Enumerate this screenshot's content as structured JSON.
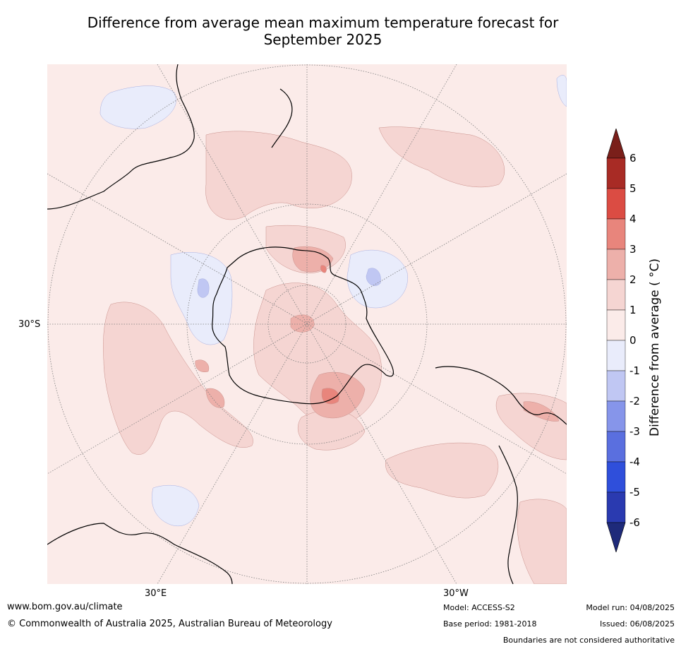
{
  "title_line1": "Difference from average mean maximum temperature forecast for",
  "title_line2": "September 2025",
  "map": {
    "projection": "south polar stereographic",
    "lat_labels": [
      "30°S"
    ],
    "lon_labels": [
      "30°E",
      "30°W"
    ]
  },
  "colorbar": {
    "title": "Difference from average ( °C)",
    "ticks": [
      "6",
      "5",
      "4",
      "3",
      "2",
      "1",
      "0",
      "-1",
      "-2",
      "-3",
      "-4",
      "-5",
      "-6"
    ],
    "colors": {
      "above_6": "#7a1f1a",
      "5_to_6": "#a82b25",
      "4_to_5": "#db4c43",
      "3_to_4": "#e8857c",
      "2_to_3": "#edb0aa",
      "1_to_2": "#f5d5d2",
      "0_to_1": "#fbebe9",
      "m1_to_0": "#e9ecfb",
      "m2_to_m1": "#c0c7f3",
      "m3_to_m2": "#8695ea",
      "m4_to_m3": "#5a6fdf",
      "m5_to_m4": "#2f4fdb",
      "m6_to_m5": "#2a3ab0",
      "below_m6": "#1e2a7a"
    }
  },
  "footer": {
    "website": "www.bom.gov.au/climate",
    "copyright": "© Commonwealth of Australia 2025, Australian Bureau of Meteorology",
    "model": "Model: ACCESS-S2",
    "base_period": "Base period: 1981-2018",
    "model_run": "Model run: 04/08/2025",
    "issued": "Issued: 06/08/2025",
    "disclaimer": "Boundaries are not considered authoritative"
  }
}
